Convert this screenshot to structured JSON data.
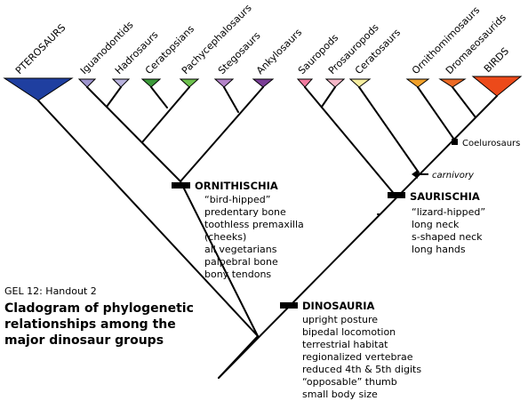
{
  "taxa": {
    "pterosaurs": "PTEROSAURS",
    "iguanodontids": "Iguanodontids",
    "hadrosaurs": "Hadrosaurs",
    "ceratopsians": "Ceratopsians",
    "pachycephalosaurs": "Pachycephalosaurs",
    "stegosaurs": "Stegosaurs",
    "ankylosaurs": "Ankylosaurs",
    "sauropods": "Sauropods",
    "prosauropods": "Prosauropods",
    "ceratosaurs": "Ceratosaurs",
    "ornithomimosaurs": "Ornithomimosaurs",
    "dromaeosaurids": "Dromaeosaurids",
    "birds": "BIRDS"
  },
  "colors": {
    "pterosaurs": "#1f3fa0",
    "iguanodontids": "#9f96cf",
    "hadrosaurs": "#b9b3de",
    "ceratopsians": "#3c9a3a",
    "pachycephalosaurs": "#6ec24e",
    "stegosaurs": "#b484c9",
    "ankylosaurs": "#7a3d96",
    "sauropods": "#f27ca0",
    "prosauropods": "#f6b8c8",
    "ceratosaurs": "#f7eea0",
    "ornithomimosaurs": "#f2a12a",
    "dromaeosaurids": "#ec6a25",
    "birds": "#ec4a1a"
  },
  "nodes": {
    "ornithischia": {
      "title": "ORNITHISCHIA",
      "traits": [
        "“bird-hipped”",
        "predentary bone",
        "toothless premaxilla",
        "(cheeks)",
        "all vegetarians",
        "palpebral bone",
        "bony tendons"
      ]
    },
    "saurischia": {
      "title": "SAURISCHIA",
      "traits": [
        "“lizard-hipped”",
        "long neck",
        "s-shaped neck",
        "long hands"
      ]
    },
    "dinosauria": {
      "title": "DINOSAURIA",
      "traits": [
        "upright posture",
        "bipedal locomotion",
        "terrestrial habitat",
        "regionalized vertebrae",
        "reduced 4th & 5th digits",
        "“opposable” thumb",
        "small body size"
      ]
    },
    "coelurosaurs": "Coelurosaurs",
    "carnivory": "carnivory"
  },
  "caption": {
    "handout": "GEL 12: Handout 2",
    "title_lines": [
      "Cladogram of phylogenetic",
      "relationships among the",
      "major dinosaur groups"
    ]
  }
}
